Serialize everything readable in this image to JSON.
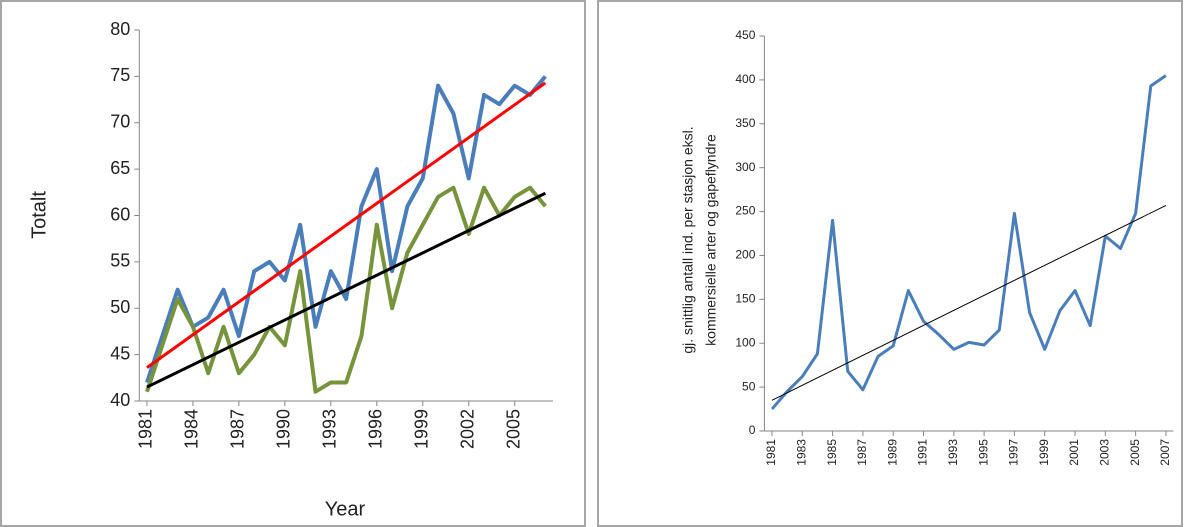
{
  "chart_data": [
    {
      "type": "line",
      "ylabel": [
        "Totalt"
      ],
      "xlabel": "Year",
      "x": [
        1981,
        1982,
        1983,
        1984,
        1985,
        1986,
        1987,
        1988,
        1989,
        1990,
        1991,
        1992,
        1993,
        1994,
        1995,
        1996,
        1997,
        1998,
        1999,
        2000,
        2001,
        2002,
        2003,
        2004,
        2005,
        2006,
        2007
      ],
      "series": [
        {
          "color": "#4a7ebb",
          "values": [
            42,
            47,
            52,
            48,
            49,
            52,
            47,
            54,
            55,
            53,
            59,
            48,
            54,
            51,
            61,
            65,
            54,
            61,
            64,
            74,
            71,
            64,
            73,
            72,
            74,
            73,
            75
          ]
        },
        {
          "color": "#77933c",
          "values": [
            41,
            46,
            51,
            48,
            43,
            48,
            43,
            45,
            48,
            46,
            54,
            41,
            42,
            42,
            47,
            59,
            50,
            56,
            59,
            62,
            63,
            58,
            63,
            60,
            62,
            63,
            61
          ]
        }
      ],
      "trends": [
        {
          "color": "#ff0000",
          "x": [
            1981,
            2007
          ],
          "values": [
            43.6,
            74.3
          ]
        },
        {
          "color": "#000000",
          "x": [
            1981,
            2007
          ],
          "values": [
            41.5,
            62.4
          ]
        }
      ],
      "xlim": [
        1980.5,
        2007.5
      ],
      "xticks": [
        1981,
        1984,
        1987,
        1990,
        1993,
        1996,
        1999,
        2002,
        2005
      ],
      "ylim": [
        40,
        80
      ],
      "yticks": [
        40,
        45,
        50,
        55,
        60,
        65,
        70,
        75,
        80
      ]
    },
    {
      "type": "line",
      "ylabel": [
        "gj. snittlig antall ind. per stasjon eksl.",
        "kommersielle arter og gapeflyndre"
      ],
      "x": [
        1981,
        1982,
        1983,
        1984,
        1985,
        1986,
        1987,
        1988,
        1989,
        1990,
        1991,
        1992,
        1993,
        1994,
        1995,
        1996,
        1997,
        1998,
        1999,
        2000,
        2001,
        2002,
        2003,
        2004,
        2005,
        2006,
        2007
      ],
      "series": [
        {
          "color": "#4a7ebb",
          "values": [
            25,
            45,
            62,
            88,
            240,
            68,
            47,
            85,
            97,
            160,
            125,
            110,
            93,
            101,
            98,
            115,
            248,
            135,
            93,
            137,
            160,
            120,
            222,
            208,
            248,
            393,
            405
          ]
        }
      ],
      "trends": [
        {
          "color": "#000000",
          "x": [
            1981,
            2007
          ],
          "values": [
            35,
            257
          ]
        }
      ],
      "xlim": [
        1980.5,
        2007.5
      ],
      "xticks": [
        1981,
        1983,
        1985,
        1987,
        1989,
        1991,
        1993,
        1995,
        1997,
        1999,
        2001,
        2003,
        2005,
        2007
      ],
      "ylim": [
        0,
        450
      ],
      "yticks": [
        0,
        50,
        100,
        150,
        200,
        250,
        300,
        350,
        400,
        450
      ]
    }
  ]
}
